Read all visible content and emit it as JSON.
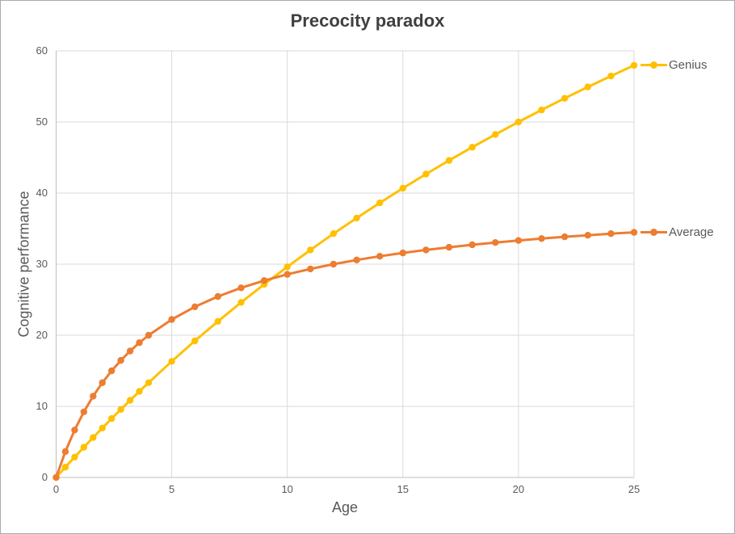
{
  "window": {
    "background": "#ffffff",
    "border_color": "#ababab"
  },
  "styles": {
    "grid_color": "#d9d9d9",
    "axis_color": "#bfbfbf",
    "text_color": "#595959",
    "title_color": "#404040"
  },
  "chart_data": {
    "type": "line",
    "title": "Precocity paradox",
    "xlabel": "Age",
    "ylabel": "Cognitive performance",
    "xlim": [
      0,
      25
    ],
    "ylim": [
      0,
      60
    ],
    "x_ticks": [
      0,
      5,
      10,
      15,
      20,
      25
    ],
    "y_ticks": [
      0,
      10,
      20,
      30,
      40,
      50,
      60
    ],
    "grid": true,
    "markers": true,
    "legend_position": "right-of-series-end",
    "x": [
      0,
      0.4,
      0.8,
      1.2,
      1.6,
      2,
      2.4,
      2.8,
      3.2,
      3.6,
      4,
      5,
      6,
      7,
      8,
      9,
      10,
      11,
      12,
      13,
      14,
      15,
      16,
      17,
      18,
      19,
      20,
      21,
      22,
      23,
      24,
      25
    ],
    "series": [
      {
        "name": "Genius",
        "color": "#FFC000",
        "values": [
          0,
          1.44,
          2.86,
          4.25,
          5.61,
          6.96,
          8.28,
          9.57,
          10.85,
          12.1,
          13.33,
          16.33,
          19.2,
          21.96,
          24.62,
          27.17,
          29.63,
          32.0,
          34.29,
          36.49,
          38.62,
          40.68,
          42.67,
          44.59,
          46.45,
          48.25,
          50.0,
          51.69,
          53.33,
          54.93,
          56.47,
          57.97
        ]
      },
      {
        "name": "Average",
        "color": "#ED7D31",
        "values": [
          0,
          3.64,
          6.67,
          9.23,
          11.43,
          13.33,
          15.0,
          16.47,
          17.78,
          18.95,
          20.0,
          22.22,
          24.0,
          25.45,
          26.67,
          27.69,
          28.57,
          29.33,
          30.0,
          30.59,
          31.11,
          31.58,
          32.0,
          32.38,
          32.73,
          33.04,
          33.33,
          33.6,
          33.85,
          34.07,
          34.29,
          34.48
        ]
      }
    ]
  }
}
